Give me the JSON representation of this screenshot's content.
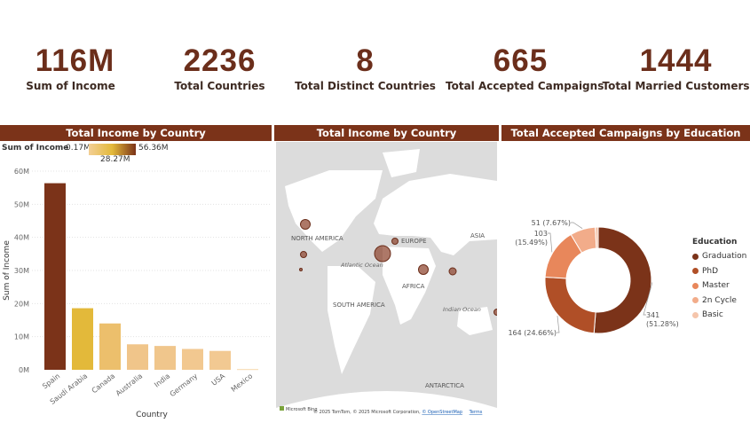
{
  "kpis": [
    {
      "value": "116M",
      "label": "Sum of  Income"
    },
    {
      "value": "2236",
      "label": "Total Countries"
    },
    {
      "value": "8",
      "label": "Total Distinct Countries"
    },
    {
      "value": "665",
      "label": "Total Accepted Campaigns"
    },
    {
      "value": "1444",
      "label": "Total Married Customers"
    }
  ],
  "panels": {
    "bar_title": "Total Income by Country",
    "map_title": "Total Income by Country",
    "donut_title": "Total Accepted Campaigns by Education"
  },
  "bar_legend": {
    "label": "Sum of  Income",
    "min": "0.17M",
    "mid": "28.27M",
    "max": "56.36M",
    "color_low": "#f3cf95",
    "color_mid": "#e3b93a",
    "color_high": "#7b3319"
  },
  "map": {
    "labels": {
      "north_america": "NORTH AMERICA",
      "europe": "EUROPE",
      "asia": "ASIA",
      "atlantic": "Atlantic Ocean",
      "africa": "AFRICA",
      "south_america": "SOUTH AMERICA",
      "indian": "Indian Ocean",
      "antarctica": "ANTARCTICA"
    },
    "attribution": "© 2025 TomTom, © 2025 Microsoft Corporation,",
    "osm": "© OpenStreetMap",
    "terms": "Terms",
    "provider": "Microsoft Bing"
  },
  "chart_data": [
    {
      "type": "bar",
      "categories": [
        "Spain",
        "Saudi Arabia",
        "Canada",
        "Australia",
        "India",
        "Germany",
        "USA",
        "Mexico"
      ],
      "values": [
        56.36,
        18.6,
        14.0,
        7.7,
        7.2,
        6.3,
        5.7,
        0.17
      ],
      "colors": [
        "#7b3319",
        "#e3b93a",
        "#ecbf6c",
        "#f0c58a",
        "#f0c68c",
        "#f2c890",
        "#f2c992",
        "#f3cf95"
      ],
      "ytick_labels": [
        "0M",
        "10M",
        "20M",
        "30M",
        "40M",
        "50M",
        "60M"
      ],
      "ytick_values": [
        0,
        10,
        20,
        30,
        40,
        50,
        60
      ],
      "ylim": [
        0,
        60
      ],
      "xlabel": "Country",
      "ylabel": "Sum of Income",
      "grid": true
    },
    {
      "type": "pie",
      "donut": true,
      "legend_title": "Education",
      "labels": [
        "Graduation",
        "PhD",
        "Master",
        "2n Cycle",
        "Basic"
      ],
      "values": [
        341,
        164,
        103,
        51,
        6
      ],
      "colors": [
        "#7b3319",
        "#b04f27",
        "#e8875b",
        "#f2ac8a",
        "#f5c5ab"
      ],
      "data_labels": [
        "341\n(51.28%)",
        "164 (24.66%)",
        "103\n(15.49%)",
        "51 (7.67%)",
        ""
      ]
    }
  ]
}
